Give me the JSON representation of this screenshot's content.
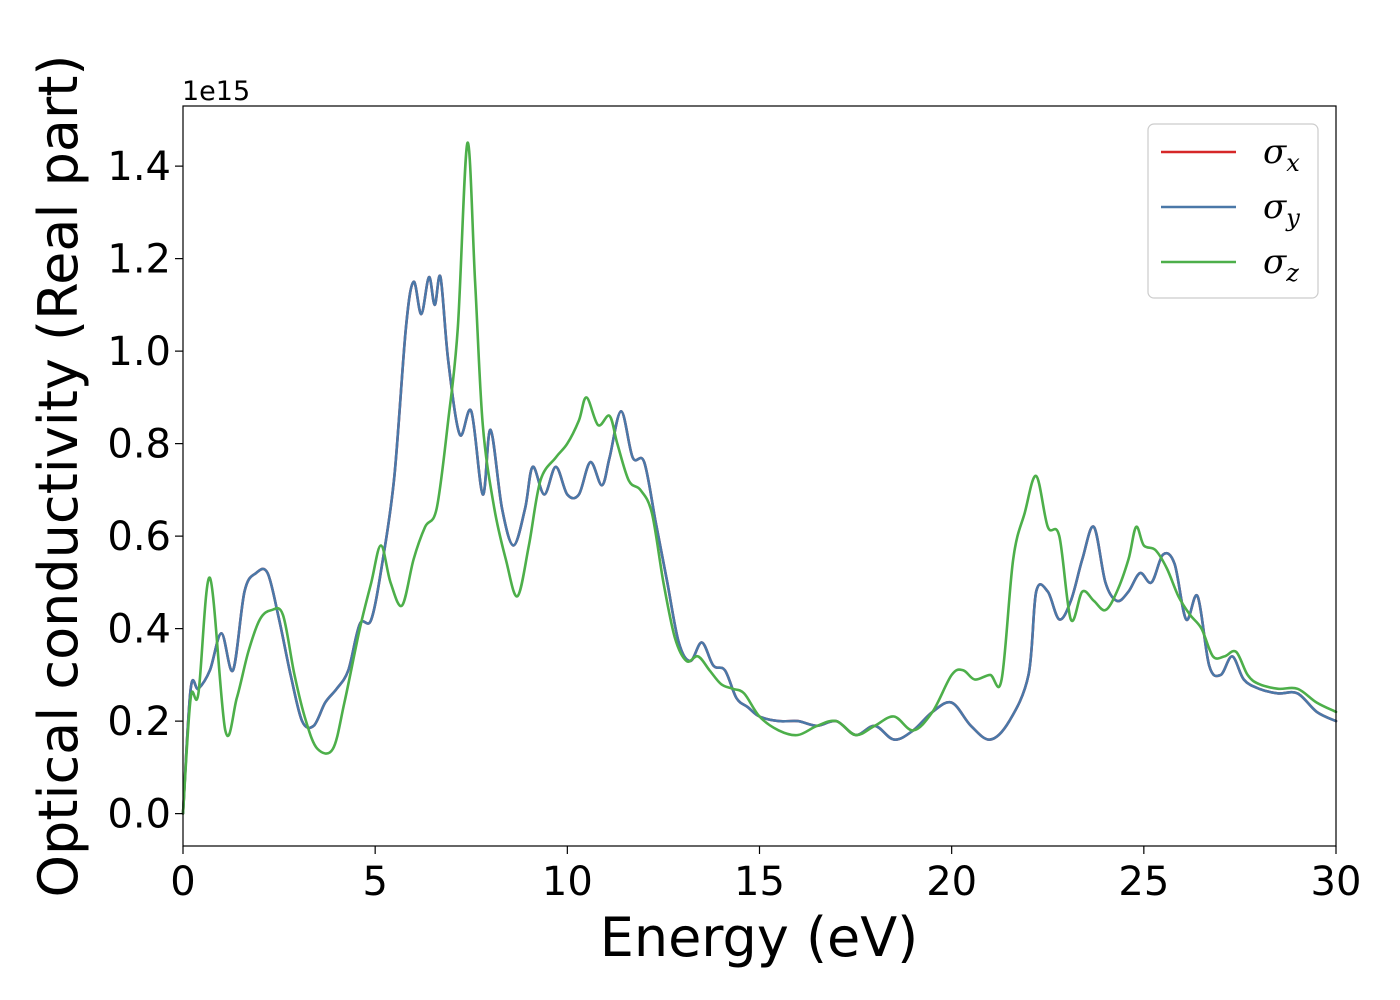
{
  "chart_data": {
    "type": "line",
    "xlabel": "Energy (eV)",
    "ylabel": "Optical conductivity (Real part)",
    "y_offset_label": "1e15",
    "xlim": [
      0,
      30
    ],
    "ylim": [
      -0.07,
      1.53
    ],
    "x_ticks": [
      0,
      5,
      10,
      15,
      20,
      25,
      30
    ],
    "y_ticks": [
      0.0,
      0.2,
      0.4,
      0.6,
      0.8,
      1.0,
      1.2,
      1.4
    ],
    "x_tick_labels": [
      "0",
      "5",
      "10",
      "15",
      "20",
      "25",
      "30"
    ],
    "y_tick_labels": [
      "0.0",
      "0.2",
      "0.4",
      "0.6",
      "0.8",
      "1.0",
      "1.2",
      "1.4"
    ],
    "grid": false,
    "legend_position": "top-right",
    "series": [
      {
        "name": "σx",
        "symbol": "σ",
        "subscript": "x",
        "color": "#d62728",
        "x": [
          0,
          0.2,
          0.4,
          0.7,
          1.0,
          1.3,
          1.6,
          1.9,
          2.2,
          2.5,
          2.8,
          3.1,
          3.4,
          3.7,
          4.0,
          4.3,
          4.6,
          4.9,
          5.2,
          5.5,
          5.8,
          6.0,
          6.2,
          6.4,
          6.55,
          6.7,
          6.9,
          7.2,
          7.5,
          7.8,
          8.0,
          8.3,
          8.6,
          8.9,
          9.1,
          9.4,
          9.7,
          10.0,
          10.3,
          10.6,
          10.9,
          11.1,
          11.4,
          11.7,
          12.0,
          12.3,
          12.6,
          12.9,
          13.2,
          13.5,
          13.8,
          14.1,
          14.4,
          14.7,
          15.0,
          15.5,
          16.0,
          16.5,
          17.0,
          17.5,
          18.0,
          18.5,
          19.0,
          19.5,
          20.0,
          20.5,
          21.0,
          21.5,
          22.0,
          22.2,
          22.5,
          22.8,
          23.1,
          23.4,
          23.7,
          24.0,
          24.3,
          24.6,
          24.9,
          25.2,
          25.5,
          25.8,
          26.1,
          26.4,
          26.7,
          27.0,
          27.3,
          27.6,
          28.0,
          28.5,
          29.0,
          29.5,
          30.0
        ],
        "values": [
          0.0,
          0.27,
          0.27,
          0.31,
          0.39,
          0.31,
          0.48,
          0.52,
          0.52,
          0.42,
          0.3,
          0.2,
          0.19,
          0.24,
          0.27,
          0.31,
          0.41,
          0.42,
          0.55,
          0.73,
          1.05,
          1.15,
          1.08,
          1.16,
          1.1,
          1.16,
          0.98,
          0.82,
          0.87,
          0.69,
          0.83,
          0.66,
          0.58,
          0.66,
          0.75,
          0.69,
          0.75,
          0.69,
          0.69,
          0.76,
          0.71,
          0.77,
          0.87,
          0.77,
          0.76,
          0.63,
          0.5,
          0.37,
          0.33,
          0.37,
          0.32,
          0.31,
          0.25,
          0.23,
          0.21,
          0.2,
          0.2,
          0.19,
          0.2,
          0.17,
          0.19,
          0.16,
          0.18,
          0.22,
          0.24,
          0.19,
          0.16,
          0.2,
          0.3,
          0.48,
          0.48,
          0.42,
          0.46,
          0.55,
          0.62,
          0.5,
          0.46,
          0.48,
          0.52,
          0.5,
          0.56,
          0.54,
          0.42,
          0.47,
          0.32,
          0.3,
          0.34,
          0.29,
          0.27,
          0.26,
          0.26,
          0.22,
          0.2
        ]
      },
      {
        "name": "σy",
        "symbol": "σ",
        "subscript": "y",
        "color": "#4a78a8",
        "x": [
          0,
          0.2,
          0.4,
          0.7,
          1.0,
          1.3,
          1.6,
          1.9,
          2.2,
          2.5,
          2.8,
          3.1,
          3.4,
          3.7,
          4.0,
          4.3,
          4.6,
          4.9,
          5.2,
          5.5,
          5.8,
          6.0,
          6.2,
          6.4,
          6.55,
          6.7,
          6.9,
          7.2,
          7.5,
          7.8,
          8.0,
          8.3,
          8.6,
          8.9,
          9.1,
          9.4,
          9.7,
          10.0,
          10.3,
          10.6,
          10.9,
          11.1,
          11.4,
          11.7,
          12.0,
          12.3,
          12.6,
          12.9,
          13.2,
          13.5,
          13.8,
          14.1,
          14.4,
          14.7,
          15.0,
          15.5,
          16.0,
          16.5,
          17.0,
          17.5,
          18.0,
          18.5,
          19.0,
          19.5,
          20.0,
          20.5,
          21.0,
          21.5,
          22.0,
          22.2,
          22.5,
          22.8,
          23.1,
          23.4,
          23.7,
          24.0,
          24.3,
          24.6,
          24.9,
          25.2,
          25.5,
          25.8,
          26.1,
          26.4,
          26.7,
          27.0,
          27.3,
          27.6,
          28.0,
          28.5,
          29.0,
          29.5,
          30.0
        ],
        "values": [
          0.0,
          0.27,
          0.27,
          0.31,
          0.39,
          0.31,
          0.48,
          0.52,
          0.52,
          0.42,
          0.3,
          0.2,
          0.19,
          0.24,
          0.27,
          0.31,
          0.41,
          0.42,
          0.55,
          0.73,
          1.05,
          1.15,
          1.08,
          1.16,
          1.1,
          1.16,
          0.98,
          0.82,
          0.87,
          0.69,
          0.83,
          0.66,
          0.58,
          0.66,
          0.75,
          0.69,
          0.75,
          0.69,
          0.69,
          0.76,
          0.71,
          0.77,
          0.87,
          0.77,
          0.76,
          0.63,
          0.5,
          0.37,
          0.33,
          0.37,
          0.32,
          0.31,
          0.25,
          0.23,
          0.21,
          0.2,
          0.2,
          0.19,
          0.2,
          0.17,
          0.19,
          0.16,
          0.18,
          0.22,
          0.24,
          0.19,
          0.16,
          0.2,
          0.3,
          0.48,
          0.48,
          0.42,
          0.46,
          0.55,
          0.62,
          0.5,
          0.46,
          0.48,
          0.52,
          0.5,
          0.56,
          0.54,
          0.42,
          0.47,
          0.32,
          0.3,
          0.34,
          0.29,
          0.27,
          0.26,
          0.26,
          0.22,
          0.2
        ]
      },
      {
        "name": "σz",
        "symbol": "σ",
        "subscript": "z",
        "color": "#4daf4a",
        "x": [
          0,
          0.2,
          0.4,
          0.7,
          1.1,
          1.4,
          1.7,
          2.0,
          2.3,
          2.6,
          2.9,
          3.2,
          3.5,
          3.9,
          4.2,
          4.6,
          4.9,
          5.15,
          5.4,
          5.7,
          6.0,
          6.3,
          6.6,
          6.9,
          7.15,
          7.4,
          7.6,
          7.8,
          8.1,
          8.4,
          8.7,
          9.0,
          9.3,
          9.7,
          10.0,
          10.3,
          10.5,
          10.8,
          11.1,
          11.3,
          11.6,
          11.9,
          12.2,
          12.5,
          12.8,
          13.1,
          13.4,
          13.7,
          14.0,
          14.3,
          14.6,
          15.0,
          15.5,
          16.0,
          16.5,
          17.0,
          17.5,
          18.0,
          18.5,
          19.0,
          19.5,
          20.0,
          20.3,
          20.6,
          21.0,
          21.3,
          21.6,
          21.9,
          22.2,
          22.5,
          22.8,
          23.1,
          23.4,
          23.7,
          24.0,
          24.3,
          24.6,
          24.8,
          25.0,
          25.3,
          25.6,
          25.9,
          26.2,
          26.5,
          26.8,
          27.1,
          27.4,
          27.7,
          28.0,
          28.5,
          29.0,
          29.5,
          30.0
        ],
        "values": [
          0.0,
          0.25,
          0.26,
          0.51,
          0.18,
          0.25,
          0.35,
          0.42,
          0.44,
          0.43,
          0.3,
          0.2,
          0.14,
          0.14,
          0.24,
          0.4,
          0.5,
          0.58,
          0.5,
          0.45,
          0.55,
          0.62,
          0.66,
          0.85,
          1.05,
          1.45,
          1.15,
          0.84,
          0.66,
          0.55,
          0.47,
          0.58,
          0.72,
          0.77,
          0.8,
          0.85,
          0.9,
          0.84,
          0.86,
          0.8,
          0.72,
          0.7,
          0.65,
          0.5,
          0.38,
          0.33,
          0.34,
          0.31,
          0.28,
          0.27,
          0.26,
          0.21,
          0.18,
          0.17,
          0.19,
          0.2,
          0.17,
          0.19,
          0.21,
          0.18,
          0.22,
          0.3,
          0.31,
          0.29,
          0.3,
          0.29,
          0.55,
          0.65,
          0.73,
          0.62,
          0.6,
          0.42,
          0.48,
          0.46,
          0.44,
          0.48,
          0.55,
          0.62,
          0.58,
          0.57,
          0.53,
          0.47,
          0.43,
          0.4,
          0.34,
          0.34,
          0.35,
          0.3,
          0.28,
          0.27,
          0.27,
          0.24,
          0.22
        ]
      }
    ]
  }
}
